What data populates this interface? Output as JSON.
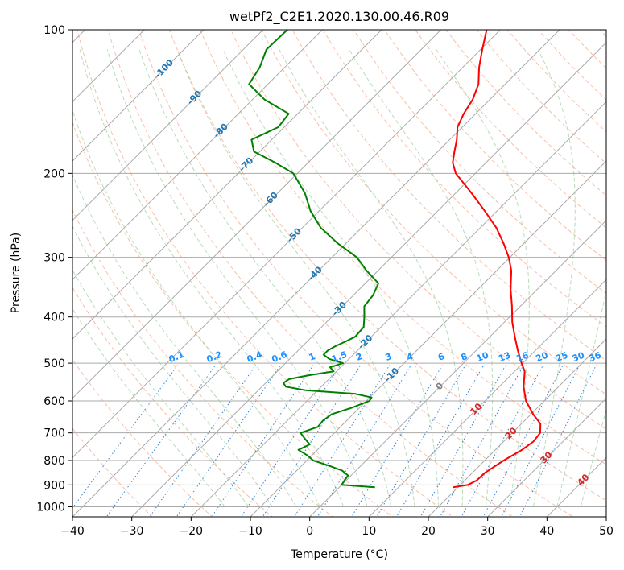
{
  "chart_data": {
    "type": "line",
    "title": "wetPf2_C2E1.2020.130.00.46.R09",
    "xlabel": "Temperature (°C)",
    "ylabel": "Pressure (hPa)",
    "xlim": [
      -40,
      50
    ],
    "ylim": [
      1050,
      100
    ],
    "y_scale": "log",
    "x_ticks": [
      -40,
      -30,
      -20,
      -10,
      0,
      10,
      20,
      30,
      40,
      50
    ],
    "x_tick_labels": [
      "−40",
      "−30",
      "−20",
      "−10",
      "0",
      "10",
      "20",
      "30",
      "40",
      "50"
    ],
    "y_ticks": [
      100,
      200,
      300,
      400,
      500,
      600,
      700,
      800,
      900,
      1000
    ],
    "y_tick_labels": [
      "100",
      "200",
      "300",
      "400",
      "500",
      "600",
      "700",
      "800",
      "900",
      "1000"
    ],
    "grid": true,
    "skew": "45-degree isotherms",
    "isotherm_labels": [
      {
        "text": "-100",
        "color": "#1f77b4"
      },
      {
        "text": "-90",
        "color": "#1f77b4"
      },
      {
        "text": "-80",
        "color": "#1f77b4"
      },
      {
        "text": "-70",
        "color": "#1f77b4"
      },
      {
        "text": "-60",
        "color": "#1f77b4"
      },
      {
        "text": "-50",
        "color": "#1f77b4"
      },
      {
        "text": "-40",
        "color": "#1f77b4"
      },
      {
        "text": "-30",
        "color": "#1f77b4"
      },
      {
        "text": "-20",
        "color": "#1f77b4"
      },
      {
        "text": "-10",
        "color": "#1f77b4"
      },
      {
        "text": "0",
        "color": "#808080"
      },
      {
        "text": "10",
        "color": "#d62728"
      },
      {
        "text": "20",
        "color": "#d62728"
      },
      {
        "text": "30",
        "color": "#d62728"
      },
      {
        "text": "40",
        "color": "#d62728"
      }
    ],
    "mixing_ratio_labels": [
      "0.1",
      "0.2",
      "0.4",
      "0.6",
      "1",
      "1.5",
      "2",
      "3",
      "4",
      "6",
      "8",
      "10",
      "13",
      "16",
      "20",
      "25",
      "30",
      "36"
    ],
    "series": [
      {
        "role": "temperature",
        "color": "#ff0000",
        "p": [
          910,
          900,
          880,
          850,
          800,
          760,
          730,
          700,
          670,
          640,
          600,
          560,
          520,
          500,
          470,
          440,
          410,
          380,
          350,
          320,
          300,
          280,
          260,
          240,
          220,
          200,
          190,
          180,
          170,
          160,
          150,
          140,
          130,
          120,
          110,
          100
        ],
        "t": [
          19.2,
          21.3,
          22.0,
          22.1,
          23.2,
          24.5,
          25.0,
          24.7,
          23.2,
          20.4,
          16.9,
          14.1,
          11.7,
          9.8,
          7.0,
          4.2,
          1.3,
          -1.4,
          -4.5,
          -7.5,
          -10.2,
          -13.5,
          -17.3,
          -22.0,
          -27.3,
          -33.3,
          -35.6,
          -37.2,
          -38.8,
          -40.8,
          -42.0,
          -42.9,
          -44.5,
          -47.2,
          -49.7,
          -52.3
        ]
      },
      {
        "role": "dewpoint",
        "color": "#008000",
        "p": [
          910,
          900,
          880,
          860,
          840,
          820,
          800,
          780,
          760,
          740,
          720,
          700,
          680,
          660,
          640,
          620,
          600,
          590,
          580,
          570,
          560,
          550,
          540,
          530,
          520,
          510,
          500,
          490,
          480,
          470,
          460,
          450,
          440,
          420,
          400,
          380,
          360,
          340,
          320,
          300,
          280,
          260,
          240,
          220,
          200,
          190,
          180,
          170,
          160,
          150,
          140,
          130,
          120,
          110,
          100
        ],
        "t": [
          6.0,
          0.0,
          -0.3,
          -0.5,
          -2.3,
          -5.4,
          -8.9,
          -10.8,
          -13.2,
          -12.2,
          -14.0,
          -15.7,
          -13.8,
          -14.0,
          -13.6,
          -11.3,
          -9.5,
          -9.7,
          -13.0,
          -22.0,
          -26.0,
          -27.0,
          -26.7,
          -24.0,
          -20.5,
          -21.8,
          -20.3,
          -23.3,
          -25.0,
          -25.0,
          -24.4,
          -23.5,
          -22.7,
          -22.9,
          -24.5,
          -26.3,
          -26.7,
          -27.8,
          -31.9,
          -35.8,
          -41.5,
          -46.9,
          -51.4,
          -55.4,
          -60.7,
          -65.5,
          -71.0,
          -73.4,
          -71.0,
          -71.5,
          -78.0,
          -83.2,
          -84.2,
          -86.1,
          -85.9
        ]
      }
    ]
  }
}
